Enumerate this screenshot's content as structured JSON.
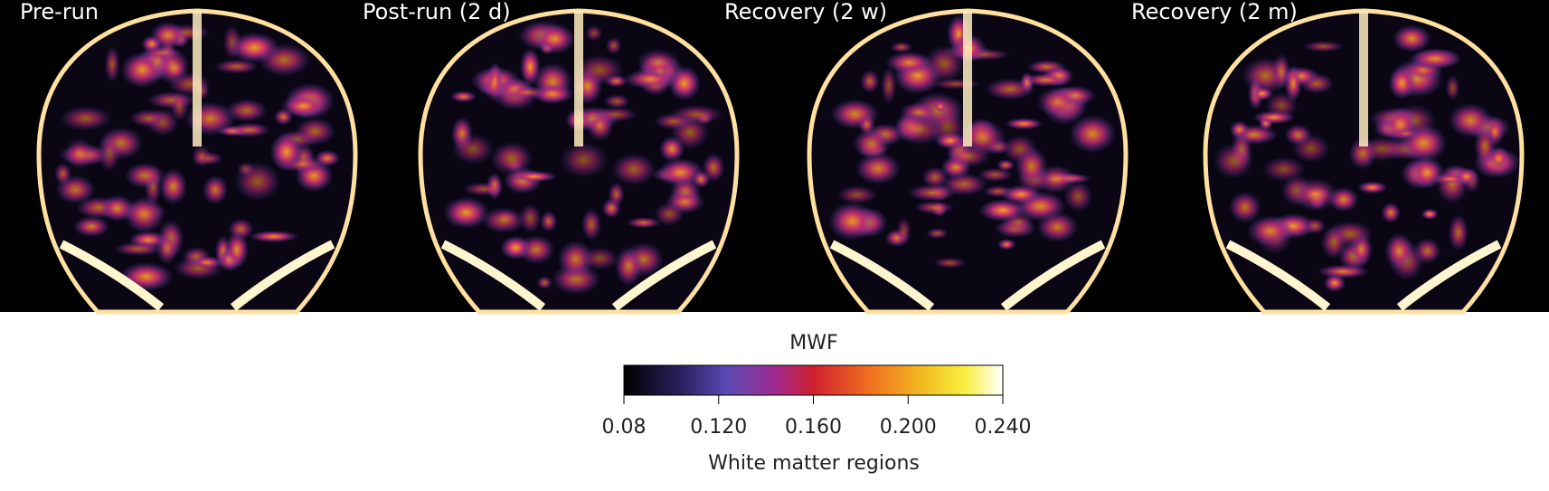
{
  "panels": [
    {
      "title": "Pre-run"
    },
    {
      "title": "Post-run (2 d)"
    },
    {
      "title": "Recovery (2 w)"
    },
    {
      "title": "Recovery (2 m)"
    }
  ],
  "colorbar": {
    "label": "MWF",
    "lim": [
      0.08,
      0.24
    ],
    "ticks": [
      0.08,
      {
        "value": 0.12,
        "label": "0.120"
      },
      {
        "value": 0.16,
        "label": "0.160"
      },
      {
        "value": 0.2,
        "label": "0.200"
      },
      {
        "value": 0.24,
        "label": "0.240"
      }
    ],
    "axis_label": "White matter regions"
  }
}
